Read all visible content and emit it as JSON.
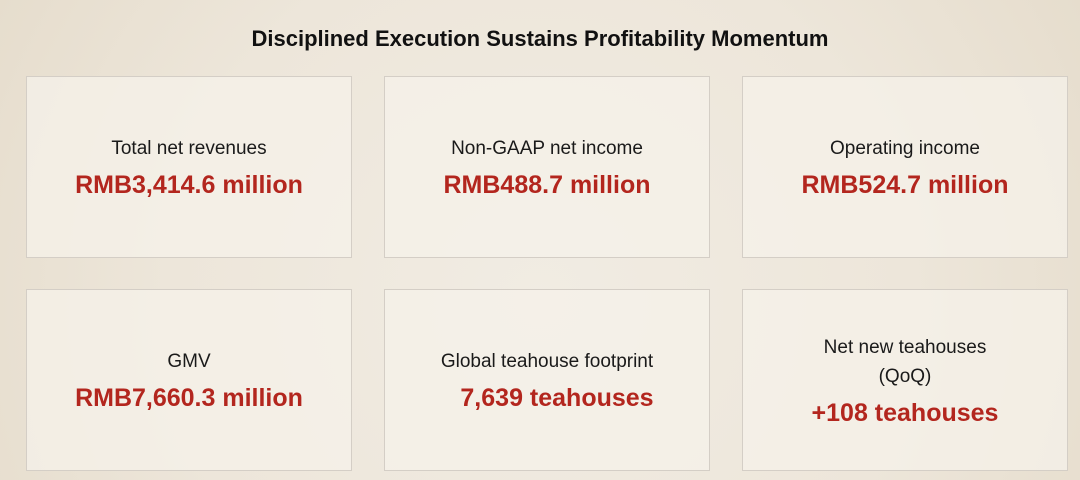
{
  "title": "Disciplined Execution Sustains Profitability Momentum",
  "cards": [
    {
      "label": "Total net revenues",
      "value": "RMB3,414.6 million"
    },
    {
      "label": "Non-GAAP net income",
      "value": "RMB488.7 million"
    },
    {
      "label": "Operating income",
      "value": "RMB524.7 million"
    },
    {
      "label": "GMV",
      "value": "RMB7,660.3 million"
    },
    {
      "label": "Global teahouse footprint",
      "value": "7,639 teahouses"
    },
    {
      "label": "Net new teahouses (QoQ)",
      "value": "+108 teahouses"
    }
  ]
}
